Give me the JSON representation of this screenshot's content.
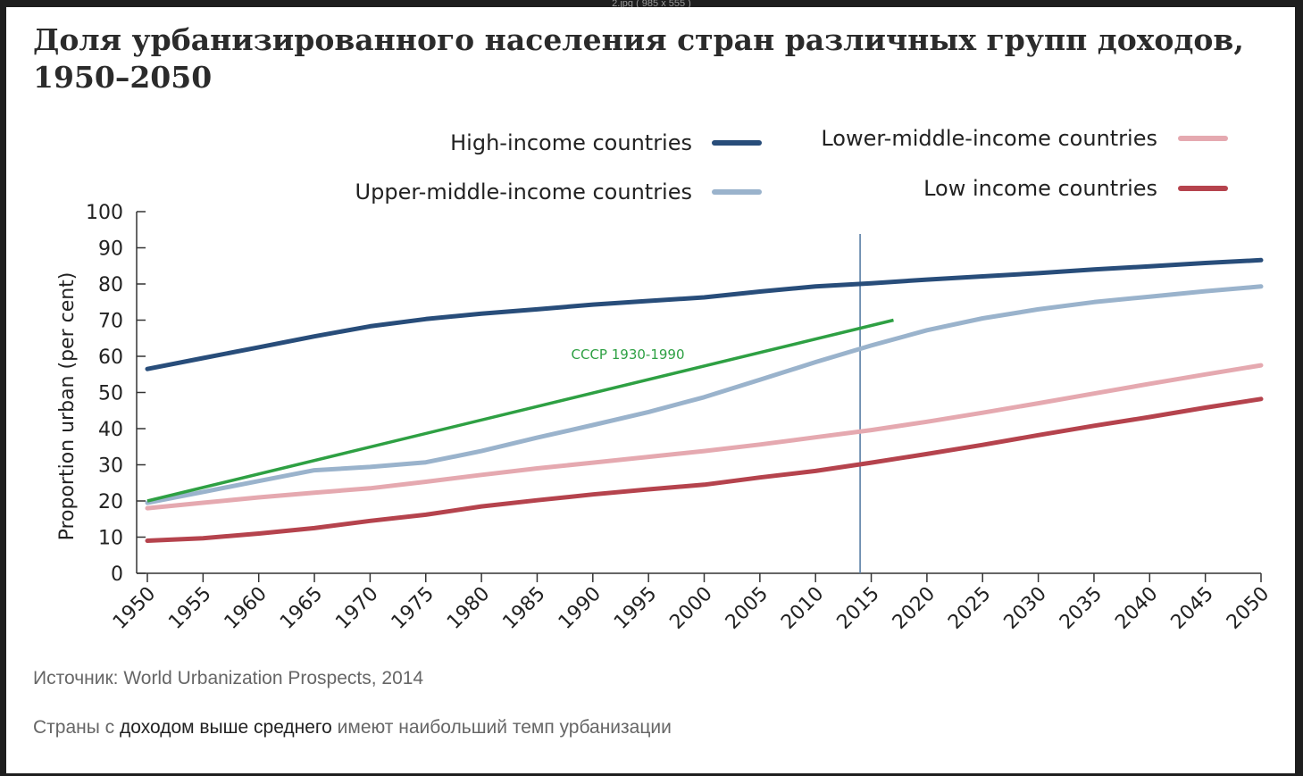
{
  "window": {
    "caption": "2.jpg ( 985 x 555 )"
  },
  "page": {
    "title": "Доля урбанизированного населения стран различных групп доходов, 1950–2050",
    "source_text": "Источник: World Urbanization Prospects, 2014",
    "note_before": "Страны с ",
    "note_highlight": "доходом выше среднего",
    "note_after": " имеют наибольший темп урбанизации"
  },
  "colors": {
    "high": "#284d7a",
    "upper_middle": "#9ab3cc",
    "lower_middle": "#e5a9b0",
    "low": "#b5434d",
    "ussr": "#2ea043",
    "marker": "#5b7fa6"
  },
  "chart_data": {
    "type": "line",
    "ylabel": "Proportion urban (per cent)",
    "xlabel": "",
    "ylim": [
      0,
      100
    ],
    "yticks": [
      0,
      10,
      20,
      30,
      40,
      50,
      60,
      70,
      80,
      90,
      100
    ],
    "x": [
      1950,
      1955,
      1960,
      1965,
      1970,
      1975,
      1980,
      1985,
      1990,
      1995,
      2000,
      2005,
      2010,
      2015,
      2020,
      2025,
      2030,
      2035,
      2040,
      2045,
      2050
    ],
    "legend_position": "top",
    "series": [
      {
        "key": "high",
        "name": "High-income countries",
        "values": [
          56.5,
          59.5,
          62.5,
          65.5,
          68.3,
          70.3,
          71.8,
          73.0,
          74.3,
          75.3,
          76.3,
          77.9,
          79.3,
          80.2,
          81.2,
          82.1,
          83.0,
          84.0,
          84.9,
          85.8,
          86.6
        ]
      },
      {
        "key": "upper_middle",
        "name": "Upper-middle-income countries",
        "values": [
          19.5,
          22.5,
          25.5,
          28.5,
          29.4,
          30.7,
          33.8,
          37.5,
          41.0,
          44.6,
          48.7,
          53.5,
          58.4,
          63.0,
          67.2,
          70.5,
          73.0,
          75.0,
          76.5,
          78.0,
          79.3
        ]
      },
      {
        "key": "lower_middle",
        "name": "Lower-middle-income countries",
        "values": [
          18.0,
          19.5,
          21.0,
          22.3,
          23.5,
          25.3,
          27.2,
          29.0,
          30.6,
          32.2,
          33.8,
          35.6,
          37.6,
          39.6,
          41.9,
          44.4,
          47.0,
          49.7,
          52.4,
          55.0,
          57.5
        ]
      },
      {
        "key": "low",
        "name": "Low income countries",
        "values": [
          9.0,
          9.7,
          11.0,
          12.5,
          14.5,
          16.2,
          18.5,
          20.2,
          21.8,
          23.2,
          24.5,
          26.5,
          28.3,
          30.6,
          33.0,
          35.5,
          38.2,
          40.8,
          43.2,
          45.8,
          48.2
        ]
      }
    ],
    "annotations": [
      {
        "label": "СССР 1930-1990",
        "type": "trend_line",
        "from": [
          1950,
          20
        ],
        "to": [
          2017,
          70
        ]
      }
    ],
    "reference_line_x": 2014
  }
}
